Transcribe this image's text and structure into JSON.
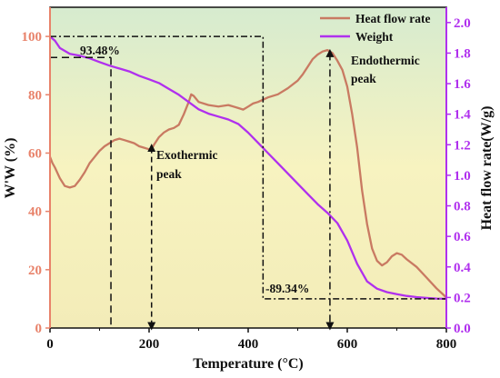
{
  "chart_data": {
    "type": "line",
    "xlabel": "Temperature (°C)",
    "ylabel_left": "W'W (%)",
    "ylabel_right": "Heat flow rate(W/g)",
    "xlim": [
      0,
      800
    ],
    "ylim_left": [
      0,
      110
    ],
    "ylim_right": [
      0,
      2.1
    ],
    "x_ticks": [
      "0",
      "200",
      "400",
      "600",
      "800"
    ],
    "y_left_ticks": [
      "0",
      "20",
      "40",
      "60",
      "80",
      "100"
    ],
    "y_right_ticks": [
      "0.0",
      "0.2",
      "0.4",
      "0.6",
      "0.8",
      "1.0",
      "1.2",
      "1.4",
      "1.6",
      "1.8",
      "2.0"
    ],
    "legend_position": "top-right",
    "series": [
      {
        "name": "Heat flow rate",
        "axis": "right",
        "color": "#c97a62",
        "points": [
          [
            0,
            1.12
          ],
          [
            5,
            1.08
          ],
          [
            10,
            1.05
          ],
          [
            20,
            0.98
          ],
          [
            30,
            0.93
          ],
          [
            40,
            0.92
          ],
          [
            50,
            0.93
          ],
          [
            60,
            0.97
          ],
          [
            70,
            1.02
          ],
          [
            80,
            1.08
          ],
          [
            90,
            1.12
          ],
          [
            100,
            1.16
          ],
          [
            110,
            1.19
          ],
          [
            120,
            1.21
          ],
          [
            130,
            1.23
          ],
          [
            140,
            1.24
          ],
          [
            150,
            1.23
          ],
          [
            160,
            1.22
          ],
          [
            170,
            1.21
          ],
          [
            180,
            1.19
          ],
          [
            190,
            1.18
          ],
          [
            200,
            1.17
          ],
          [
            205,
            1.17
          ],
          [
            210,
            1.2
          ],
          [
            220,
            1.25
          ],
          [
            230,
            1.28
          ],
          [
            240,
            1.3
          ],
          [
            250,
            1.31
          ],
          [
            260,
            1.33
          ],
          [
            270,
            1.4
          ],
          [
            280,
            1.48
          ],
          [
            285,
            1.53
          ],
          [
            290,
            1.52
          ],
          [
            300,
            1.48
          ],
          [
            320,
            1.46
          ],
          [
            340,
            1.45
          ],
          [
            360,
            1.46
          ],
          [
            380,
            1.44
          ],
          [
            390,
            1.43
          ],
          [
            400,
            1.45
          ],
          [
            410,
            1.47
          ],
          [
            420,
            1.48
          ],
          [
            440,
            1.51
          ],
          [
            460,
            1.53
          ],
          [
            480,
            1.57
          ],
          [
            500,
            1.62
          ],
          [
            510,
            1.66
          ],
          [
            520,
            1.71
          ],
          [
            530,
            1.76
          ],
          [
            540,
            1.79
          ],
          [
            550,
            1.81
          ],
          [
            560,
            1.82
          ],
          [
            570,
            1.8
          ],
          [
            580,
            1.75
          ],
          [
            590,
            1.69
          ],
          [
            600,
            1.58
          ],
          [
            610,
            1.4
          ],
          [
            620,
            1.18
          ],
          [
            630,
            0.9
          ],
          [
            640,
            0.68
          ],
          [
            650,
            0.52
          ],
          [
            660,
            0.44
          ],
          [
            670,
            0.41
          ],
          [
            680,
            0.43
          ],
          [
            690,
            0.47
          ],
          [
            700,
            0.49
          ],
          [
            710,
            0.48
          ],
          [
            720,
            0.45
          ],
          [
            740,
            0.4
          ],
          [
            760,
            0.33
          ],
          [
            780,
            0.26
          ],
          [
            800,
            0.2
          ]
        ]
      },
      {
        "name": "Weight",
        "axis": "left",
        "color": "#b030ee",
        "points": [
          [
            0,
            100
          ],
          [
            10,
            98.5
          ],
          [
            20,
            96
          ],
          [
            40,
            94
          ],
          [
            60,
            93.4
          ],
          [
            80,
            92.5
          ],
          [
            100,
            91.2
          ],
          [
            120,
            90
          ],
          [
            140,
            89
          ],
          [
            160,
            88
          ],
          [
            180,
            86.5
          ],
          [
            200,
            85.3
          ],
          [
            220,
            84
          ],
          [
            240,
            82
          ],
          [
            260,
            80
          ],
          [
            280,
            77.5
          ],
          [
            300,
            75
          ],
          [
            320,
            73.5
          ],
          [
            340,
            72.5
          ],
          [
            360,
            71.5
          ],
          [
            380,
            70
          ],
          [
            400,
            67
          ],
          [
            420,
            63.5
          ],
          [
            440,
            60
          ],
          [
            460,
            56.5
          ],
          [
            480,
            53
          ],
          [
            500,
            49.5
          ],
          [
            520,
            46
          ],
          [
            540,
            42.5
          ],
          [
            560,
            39.5
          ],
          [
            580,
            36
          ],
          [
            600,
            30
          ],
          [
            620,
            22
          ],
          [
            640,
            16
          ],
          [
            660,
            13.5
          ],
          [
            680,
            12.3
          ],
          [
            700,
            11.6
          ],
          [
            720,
            11
          ],
          [
            740,
            10.6
          ],
          [
            760,
            10.3
          ],
          [
            780,
            10.1
          ],
          [
            800,
            10
          ]
        ]
      }
    ],
    "annotations": {
      "weight_start": "93.48%",
      "weight_end": "-89.34%",
      "exo_label_line1": "Exothermic",
      "exo_label_line2": "peak",
      "endo_label_line1": "Endothermic",
      "endo_label_line2": "peak"
    },
    "colors": {
      "left_axis": "#e8826a",
      "right_axis": "#b030ee",
      "bg_top": "#d6ebcf",
      "bg_bottom": "#f6efbd"
    }
  }
}
